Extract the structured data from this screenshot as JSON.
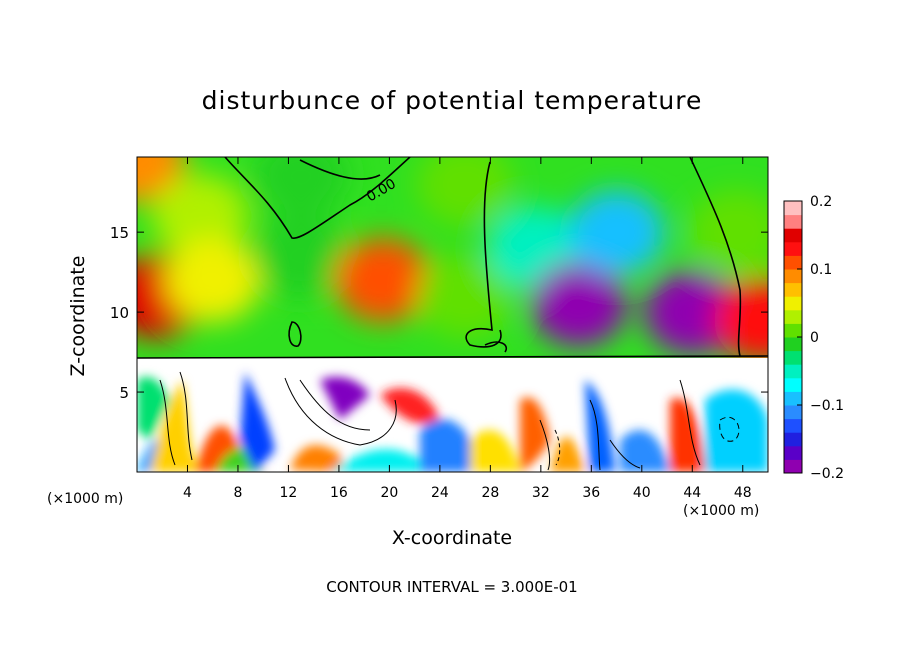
{
  "chart_data": {
    "type": "heatmap",
    "title": "disturbunce of potential temperature",
    "xlabel": "X-coordinate",
    "ylabel": "Z-coordinate",
    "x_unit_label": "(×1000 m)",
    "x_ticks": [
      4,
      8,
      12,
      16,
      20,
      24,
      28,
      32,
      36,
      40,
      44,
      48
    ],
    "y_ticks": [
      5,
      10,
      15
    ],
    "xlim": [
      0,
      50
    ],
    "ylim": [
      0,
      19.7
    ],
    "colorbar": {
      "ticks": [
        0.2,
        0.1,
        0,
        -0.1,
        -0.2
      ],
      "range": [
        -0.2,
        0.2
      ],
      "colors": [
        "#8f00b0",
        "#5a00c8",
        "#2020e0",
        "#1e50ff",
        "#2a8cff",
        "#19c0ff",
        "#00ffff",
        "#00f0c0",
        "#00e070",
        "#20d020",
        "#60e000",
        "#b0f000",
        "#f0f000",
        "#ffc000",
        "#ff8c00",
        "#ff5000",
        "#ff1010",
        "#e00000",
        "#ff8080",
        "#ffc0c0"
      ]
    },
    "contour_label": "0.00",
    "footnote": "CONTOUR INTERVAL = 3.000E-01",
    "field_regions": [
      {
        "x": 0.0,
        "z": 19.5,
        "value": 0.08
      },
      {
        "x": 5.0,
        "z": 16.0,
        "value": 0.03
      },
      {
        "x": 13.0,
        "z": 18.5,
        "value": -0.02
      },
      {
        "x": 26.0,
        "z": 18.0,
        "value": 0.0
      },
      {
        "x": 1.5,
        "z": 11.0,
        "value": 0.15
      },
      {
        "x": 6.0,
        "z": 12.0,
        "value": 0.05
      },
      {
        "x": 13.0,
        "z": 13.5,
        "value": -0.01
      },
      {
        "x": 19.5,
        "z": 12.0,
        "value": 0.1
      },
      {
        "x": 26.0,
        "z": 11.0,
        "value": 0.02
      },
      {
        "x": 31.5,
        "z": 14.0,
        "value": -0.05
      },
      {
        "x": 35.0,
        "z": 10.5,
        "value": -0.19
      },
      {
        "x": 38.0,
        "z": 15.0,
        "value": -0.09
      },
      {
        "x": 44.0,
        "z": 10.0,
        "value": -0.2
      },
      {
        "x": 47.5,
        "z": 15.0,
        "value": 0.02
      },
      {
        "x": 49.5,
        "z": 9.5,
        "value": 0.13
      }
    ]
  }
}
